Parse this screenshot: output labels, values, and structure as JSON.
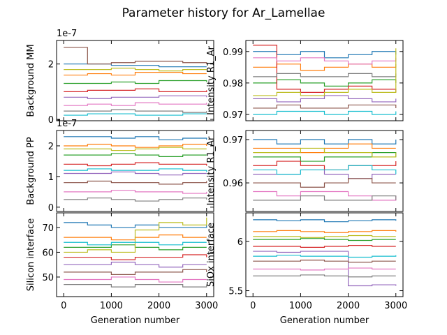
{
  "title": "Parameter history for Ar_Lamellae",
  "chart_data": [
    {
      "type": "line",
      "drawstyle": "steps-post",
      "ylabel": "Background MM",
      "offset_text": "1e-7",
      "xticklabels": false,
      "x": [
        0,
        500,
        1000,
        1500,
        2000,
        2500,
        3000
      ],
      "xlim": [
        -150,
        3150
      ],
      "xticks": [
        0,
        1000,
        2000,
        3000
      ],
      "ylim": [
        -5e-09,
        2.85e-07
      ],
      "yticks": [
        0,
        {
          "value": 2e-07,
          "label": "2"
        }
      ],
      "series": [
        {
          "color": "#1f77b4",
          "values": [
            2e-07,
            2e-07,
            1.95e-07,
            1.95e-07,
            1.9e-07,
            1.9e-07,
            1.9e-07
          ]
        },
        {
          "color": "#ff7f0e",
          "values": [
            1.6e-07,
            1.65e-07,
            1.6e-07,
            1.7e-07,
            1.7e-07,
            1.65e-07,
            1.65e-07
          ]
        },
        {
          "color": "#2ca02c",
          "values": [
            1.3e-07,
            1.3e-07,
            1.35e-07,
            1.3e-07,
            1.4e-07,
            1.4e-07,
            1.35e-07
          ]
        },
        {
          "color": "#d62728",
          "values": [
            1e-07,
            1.05e-07,
            1.05e-07,
            1.1e-07,
            1e-07,
            1e-07,
            1.05e-07
          ]
        },
        {
          "color": "#9467bd",
          "values": [
            8e-08,
            7.5e-08,
            8e-08,
            8e-08,
            8.5e-08,
            8.5e-08,
            8e-08
          ]
        },
        {
          "color": "#8c564b",
          "values": [
            2.6e-07,
            2e-07,
            2.05e-07,
            2.1e-07,
            2.1e-07,
            2.05e-07,
            2e-07
          ]
        },
        {
          "color": "#e377c2",
          "values": [
            5e-08,
            5.5e-08,
            5e-08,
            6e-08,
            5.5e-08,
            5.5e-08,
            6e-08
          ]
        },
        {
          "color": "#7f7f7f",
          "values": [
            3e-08,
            3e-08,
            3.5e-08,
            3e-08,
            3e-08,
            2.5e-08,
            3e-08
          ]
        },
        {
          "color": "#bcbd22",
          "values": [
            1.8e-07,
            1.8e-07,
            1.85e-07,
            1.8e-07,
            1.75e-07,
            1.8e-07,
            1.8e-07
          ]
        },
        {
          "color": "#17becf",
          "values": [
            1.5e-08,
            2e-08,
            2e-08,
            1.5e-08,
            1.5e-08,
            2e-08,
            2e-08
          ]
        }
      ]
    },
    {
      "type": "line",
      "drawstyle": "steps-post",
      "ylabel": "Intensity R1_Ar",
      "xticklabels": false,
      "x": [
        0,
        500,
        1000,
        1500,
        2000,
        2500,
        3000
      ],
      "xlim": [
        -150,
        3150
      ],
      "xticks": [
        0,
        1000,
        2000,
        3000
      ],
      "ylim": [
        0.968,
        0.9935
      ],
      "yticks": [
        0.97,
        0.98,
        0.99
      ],
      "series": [
        {
          "color": "#1f77b4",
          "values": [
            0.99,
            0.989,
            0.99,
            0.988,
            0.989,
            0.99,
            0.989
          ]
        },
        {
          "color": "#ff7f0e",
          "values": [
            0.985,
            0.986,
            0.984,
            0.985,
            0.986,
            0.985,
            0.986
          ]
        },
        {
          "color": "#2ca02c",
          "values": [
            0.98,
            0.981,
            0.98,
            0.979,
            0.98,
            0.981,
            0.98
          ]
        },
        {
          "color": "#d62728",
          "values": [
            0.992,
            0.978,
            0.977,
            0.978,
            0.979,
            0.978,
            0.977
          ]
        },
        {
          "color": "#9467bd",
          "values": [
            0.975,
            0.974,
            0.975,
            0.976,
            0.975,
            0.974,
            0.975
          ]
        },
        {
          "color": "#8c564b",
          "values": [
            0.972,
            0.973,
            0.972,
            0.972,
            0.973,
            0.973,
            0.972
          ]
        },
        {
          "color": "#e377c2",
          "values": [
            0.988,
            0.987,
            0.988,
            0.987,
            0.986,
            0.987,
            0.988
          ]
        },
        {
          "color": "#7f7f7f",
          "values": [
            0.982,
            0.983,
            0.982,
            0.982,
            0.983,
            0.982,
            0.983
          ]
        },
        {
          "color": "#bcbd22",
          "values": [
            0.976,
            0.977,
            0.976,
            0.977,
            0.978,
            0.977,
            0.991
          ]
        },
        {
          "color": "#17becf",
          "values": [
            0.97,
            0.971,
            0.971,
            0.97,
            0.971,
            0.97,
            0.971
          ]
        }
      ]
    },
    {
      "type": "line",
      "drawstyle": "steps-post",
      "ylabel": "Background PP",
      "offset_text": "1e-7",
      "xticklabels": false,
      "x": [
        0,
        500,
        1000,
        1500,
        2000,
        2500,
        3000
      ],
      "xlim": [
        -150,
        3150
      ],
      "xticks": [
        0,
        1000,
        2000,
        3000
      ],
      "ylim": [
        -1.4e-08,
        2.5e-07
      ],
      "yticks": [
        0,
        {
          "value": 1e-07,
          "label": "1"
        },
        {
          "value": 2e-07,
          "label": "2"
        }
      ],
      "series": [
        {
          "color": "#1f77b4",
          "values": [
            2.3e-07,
            2.3e-07,
            2.25e-07,
            2.3e-07,
            2.2e-07,
            2.25e-07,
            2.2e-07
          ]
        },
        {
          "color": "#ff7f0e",
          "values": [
            2e-07,
            2.05e-07,
            2e-07,
            1.95e-07,
            2e-07,
            2.05e-07,
            2e-07
          ]
        },
        {
          "color": "#2ca02c",
          "values": [
            1.7e-07,
            1.7e-07,
            1.75e-07,
            1.7e-07,
            1.65e-07,
            1.7e-07,
            1.7e-07
          ]
        },
        {
          "color": "#d62728",
          "values": [
            1.4e-07,
            1.35e-07,
            1.4e-07,
            1.45e-07,
            1.4e-07,
            1.4e-07,
            1.35e-07
          ]
        },
        {
          "color": "#9467bd",
          "values": [
            1.1e-07,
            1.1e-07,
            1.15e-07,
            1.1e-07,
            1.05e-07,
            1.1e-07,
            1.1e-07
          ]
        },
        {
          "color": "#8c564b",
          "values": [
            8e-08,
            8.5e-08,
            8e-08,
            8e-08,
            7.5e-08,
            8e-08,
            8.5e-08
          ]
        },
        {
          "color": "#e377c2",
          "values": [
            5e-08,
            5e-08,
            5.5e-08,
            5e-08,
            5e-08,
            4.5e-08,
            5e-08
          ]
        },
        {
          "color": "#7f7f7f",
          "values": [
            2.5e-08,
            3e-08,
            2.5e-08,
            2e-08,
            2.5e-08,
            3e-08,
            2.5e-08
          ]
        },
        {
          "color": "#bcbd22",
          "values": [
            1.9e-07,
            1.9e-07,
            1.85e-07,
            1.9e-07,
            1.95e-07,
            1.9e-07,
            1.9e-07
          ]
        },
        {
          "color": "#17becf",
          "values": [
            1.2e-07,
            1.25e-07,
            1.2e-07,
            1.2e-07,
            1.25e-07,
            1.2e-07,
            1.15e-07
          ]
        }
      ]
    },
    {
      "type": "line",
      "drawstyle": "steps-post",
      "ylabel": "Intensity R1_Ar",
      "xticklabels": false,
      "x": [
        0,
        500,
        1000,
        1500,
        2000,
        2500,
        3000
      ],
      "xlim": [
        -150,
        3150
      ],
      "xticks": [
        0,
        1000,
        2000,
        3000
      ],
      "ylim": [
        0.9534,
        0.9721
      ],
      "yticks": [
        0.96,
        0.97
      ],
      "series": [
        {
          "color": "#1f77b4",
          "values": [
            0.97,
            0.969,
            0.97,
            0.969,
            0.97,
            0.969,
            0.97
          ]
        },
        {
          "color": "#ff7f0e",
          "values": [
            0.968,
            0.968,
            0.967,
            0.968,
            0.969,
            0.968,
            0.968
          ]
        },
        {
          "color": "#2ca02c",
          "values": [
            0.966,
            0.966,
            0.965,
            0.966,
            0.966,
            0.967,
            0.966
          ]
        },
        {
          "color": "#d62728",
          "values": [
            0.964,
            0.965,
            0.964,
            0.963,
            0.964,
            0.964,
            0.965
          ]
        },
        {
          "color": "#9467bd",
          "values": [
            0.962,
            0.962,
            0.963,
            0.962,
            0.961,
            0.962,
            0.962
          ]
        },
        {
          "color": "#8c564b",
          "values": [
            0.96,
            0.96,
            0.959,
            0.96,
            0.961,
            0.96,
            0.96
          ]
        },
        {
          "color": "#e377c2",
          "values": [
            0.958,
            0.957,
            0.958,
            0.958,
            0.957,
            0.956,
            0.957
          ]
        },
        {
          "color": "#7f7f7f",
          "values": [
            0.956,
            0.956,
            0.957,
            0.956,
            0.956,
            0.957,
            0.956
          ]
        },
        {
          "color": "#bcbd22",
          "values": [
            0.967,
            0.967,
            0.968,
            0.967,
            0.967,
            0.966,
            0.967
          ]
        },
        {
          "color": "#17becf",
          "values": [
            0.963,
            0.962,
            0.963,
            0.963,
            0.964,
            0.963,
            0.962
          ]
        }
      ]
    },
    {
      "type": "line",
      "drawstyle": "steps-post",
      "ylabel": "Silicon interface",
      "xlabel": "Generation number",
      "xticklabels": true,
      "x": [
        0,
        500,
        1000,
        1500,
        2000,
        2500,
        3000
      ],
      "xlim": [
        -150,
        3150
      ],
      "xticks": [
        0,
        1000,
        2000,
        3000
      ],
      "ylim": [
        42.1,
        75.9
      ],
      "yticks": [
        50,
        60,
        70
      ],
      "series": [
        {
          "color": "#1f77b4",
          "values": [
            72,
            71,
            70,
            71,
            70,
            70,
            71
          ]
        },
        {
          "color": "#ff7f0e",
          "values": [
            66,
            66,
            65,
            66,
            67,
            66,
            66
          ]
        },
        {
          "color": "#2ca02c",
          "values": [
            62,
            62,
            63,
            62,
            61,
            62,
            62
          ]
        },
        {
          "color": "#d62728",
          "values": [
            58,
            58,
            57,
            58,
            58,
            59,
            58
          ]
        },
        {
          "color": "#9467bd",
          "values": [
            55,
            55,
            56,
            55,
            54,
            55,
            55
          ]
        },
        {
          "color": "#8c564b",
          "values": [
            52,
            52,
            51,
            52,
            52,
            53,
            52
          ]
        },
        {
          "color": "#e377c2",
          "values": [
            49,
            49,
            50,
            49,
            48,
            49,
            49
          ]
        },
        {
          "color": "#7f7f7f",
          "values": [
            47,
            47,
            46,
            47,
            47,
            46,
            47
          ]
        },
        {
          "color": "#bcbd22",
          "values": [
            60,
            61,
            60,
            69,
            72,
            71,
            74
          ]
        },
        {
          "color": "#17becf",
          "values": [
            64,
            63,
            64,
            64,
            63,
            64,
            64
          ]
        }
      ]
    },
    {
      "type": "line",
      "drawstyle": "steps-post",
      "ylabel": "SiOx interface",
      "xlabel": "Generation number",
      "xticklabels": true,
      "x": [
        0,
        500,
        1000,
        1500,
        2000,
        2500,
        3000
      ],
      "xlim": [
        -150,
        3150
      ],
      "xticks": [
        0,
        1000,
        2000,
        3000
      ],
      "ylim": [
        5.44,
        6.29
      ],
      "yticks": [
        5.5,
        6.0
      ],
      "series": [
        {
          "color": "#1f77b4",
          "values": [
            6.22,
            6.21,
            6.22,
            6.2,
            6.21,
            6.22,
            6.21
          ]
        },
        {
          "color": "#ff7f0e",
          "values": [
            6.1,
            6.11,
            6.1,
            6.09,
            6.1,
            6.11,
            6.1
          ]
        },
        {
          "color": "#2ca02c",
          "values": [
            6.02,
            6.02,
            6.03,
            6.02,
            6.01,
            6.02,
            6.02
          ]
        },
        {
          "color": "#d62728",
          "values": [
            5.95,
            5.95,
            5.94,
            5.95,
            5.96,
            5.95,
            5.95
          ]
        },
        {
          "color": "#9467bd",
          "values": [
            5.9,
            5.89,
            5.9,
            5.9,
            5.55,
            5.56,
            5.55
          ]
        },
        {
          "color": "#8c564b",
          "values": [
            5.8,
            5.8,
            5.81,
            5.8,
            5.79,
            5.8,
            5.8
          ]
        },
        {
          "color": "#e377c2",
          "values": [
            5.72,
            5.72,
            5.71,
            5.72,
            5.73,
            5.72,
            5.72
          ]
        },
        {
          "color": "#7f7f7f",
          "values": [
            5.65,
            5.65,
            5.66,
            5.65,
            5.64,
            5.65,
            5.65
          ]
        },
        {
          "color": "#bcbd22",
          "values": [
            6.05,
            6.05,
            6.04,
            6.05,
            6.06,
            6.05,
            6.05
          ]
        },
        {
          "color": "#17becf",
          "values": [
            5.85,
            5.86,
            5.85,
            5.85,
            5.84,
            5.85,
            5.86
          ]
        }
      ]
    }
  ]
}
